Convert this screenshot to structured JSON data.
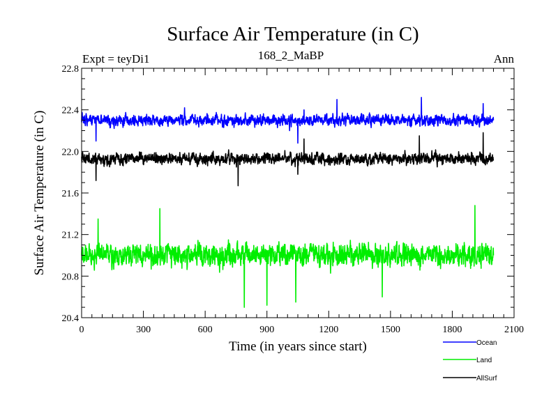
{
  "chart_data": {
    "type": "line",
    "title": "Surface Air Temperature (in C)",
    "subtitle_left": "Expt = teyDi1",
    "subtitle_center": "168_2_MaBP",
    "subtitle_right": "Ann",
    "xlabel": "Time (in years since start)",
    "ylabel": "Surface Air Temperature (in C)",
    "xlim": [
      0,
      2100
    ],
    "ylim": [
      20.4,
      22.8
    ],
    "x_ticks": [
      0,
      300,
      600,
      900,
      1200,
      1500,
      1800,
      2100
    ],
    "x_tick_labels": [
      "0",
      "300",
      "600",
      "900",
      "1200",
      "1500",
      "1800",
      "2100"
    ],
    "y_ticks": [
      20.4,
      20.8,
      21.2,
      21.6,
      22.0,
      22.4,
      22.8
    ],
    "y_tick_labels": [
      "20.4",
      "20.8",
      "21.2",
      "21.6",
      "22.0",
      "22.4",
      "22.8"
    ],
    "legend_position": "bottom-right, outside plot",
    "series": [
      {
        "name": "Ocean",
        "color": "#0000ff",
        "x_range": [
          0,
          2000
        ],
        "approx_mean": 22.3,
        "approx_min": 22.05,
        "approx_max": 22.52,
        "anchor_points": [
          [
            0,
            22.28
          ],
          [
            70,
            22.1
          ],
          [
            500,
            22.42
          ],
          [
            1010,
            22.2
          ],
          [
            1050,
            22.08
          ],
          [
            1080,
            22.4
          ],
          [
            1240,
            22.5
          ],
          [
            1650,
            22.52
          ],
          [
            1950,
            22.46
          ],
          [
            2000,
            22.3
          ]
        ]
      },
      {
        "name": "Land",
        "color": "#00ee00",
        "x_range": [
          0,
          2000
        ],
        "approx_mean": 21.0,
        "approx_min": 20.5,
        "approx_max": 21.48,
        "anchor_points": [
          [
            0,
            21.0
          ],
          [
            80,
            21.35
          ],
          [
            380,
            21.45
          ],
          [
            790,
            20.5
          ],
          [
            900,
            20.52
          ],
          [
            1040,
            20.55
          ],
          [
            1460,
            20.6
          ],
          [
            1910,
            21.48
          ],
          [
            2000,
            21.0
          ]
        ]
      },
      {
        "name": "AllSurf",
        "color": "#000000",
        "x_range": [
          0,
          2000
        ],
        "approx_mean": 21.93,
        "approx_min": 21.67,
        "approx_max": 22.18,
        "anchor_points": [
          [
            0,
            21.95
          ],
          [
            70,
            21.72
          ],
          [
            760,
            21.67
          ],
          [
            1050,
            21.78
          ],
          [
            1080,
            22.12
          ],
          [
            1640,
            22.15
          ],
          [
            1950,
            22.18
          ],
          [
            2000,
            21.92
          ]
        ]
      }
    ]
  }
}
